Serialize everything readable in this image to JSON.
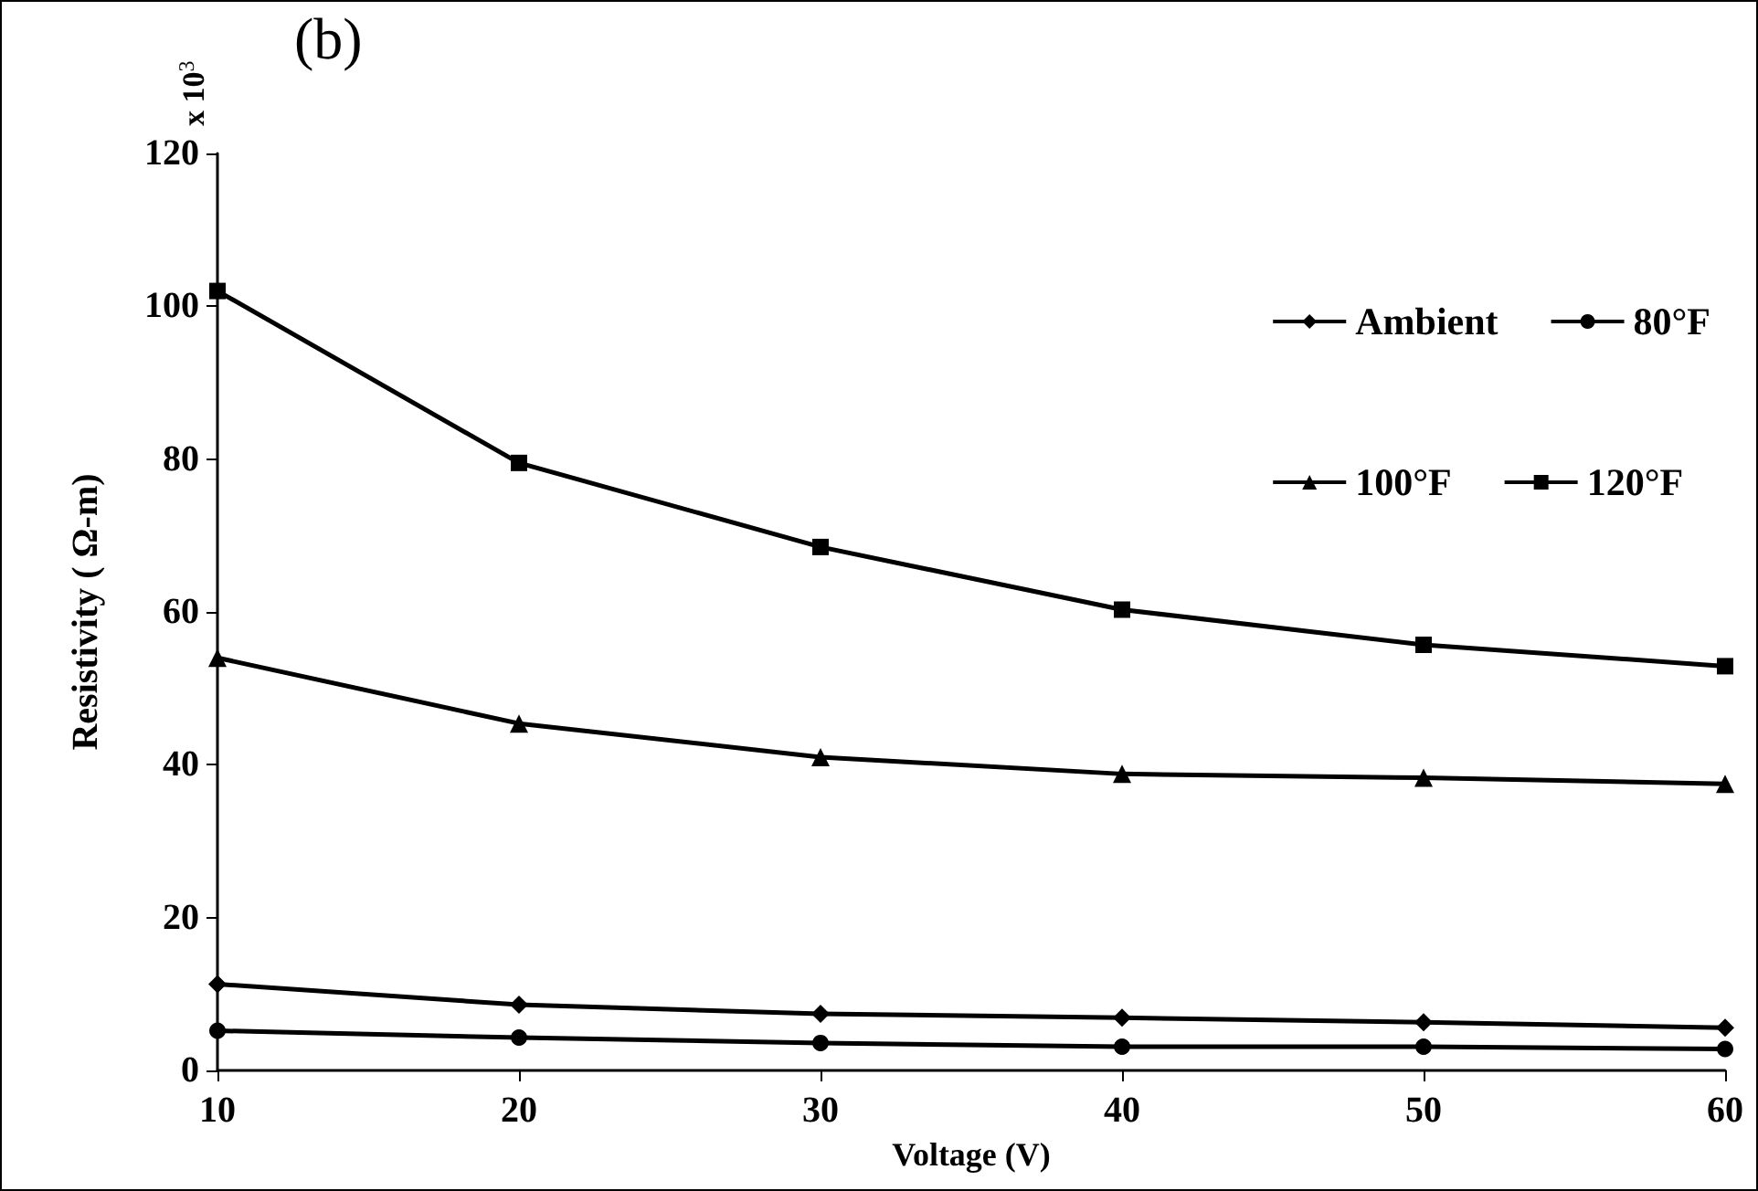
{
  "chart_data": {
    "type": "line",
    "xlabel": "Voltage (V)",
    "ylabel": "Resistivity ( Ω-m)",
    "annotations": [
      "(b)",
      "x 10$^{3}$"
    ],
    "x": [
      10,
      20,
      30,
      40,
      50,
      60
    ],
    "series": [
      {
        "name": "Ambient",
        "color": "#000000",
        "marker": "diamond",
        "values": [
          11.3,
          8.6,
          7.4,
          6.9,
          6.3,
          5.6
        ]
      },
      {
        "name": "80°F",
        "color": "#000000",
        "marker": "circle",
        "values": [
          5.2,
          4.3,
          3.6,
          3.1,
          3.1,
          2.8
        ]
      },
      {
        "name": "100°F",
        "color": "#000000",
        "marker": "triangle",
        "values": [
          54,
          45.4,
          41,
          38.8,
          38.3,
          37.5
        ]
      },
      {
        "name": "120°F",
        "color": "#000000",
        "marker": "square",
        "values": [
          102,
          79.5,
          68.5,
          60.3,
          55.7,
          52.9
        ]
      }
    ],
    "xlim": [
      10,
      60
    ],
    "xticks": [
      10,
      20,
      30,
      40,
      50,
      60
    ],
    "ylim": [
      0,
      120
    ],
    "yticks": [
      0,
      20,
      40,
      60,
      80,
      100,
      120
    ],
    "grid": false,
    "legend": "top right",
    "line_style": "solid"
  }
}
